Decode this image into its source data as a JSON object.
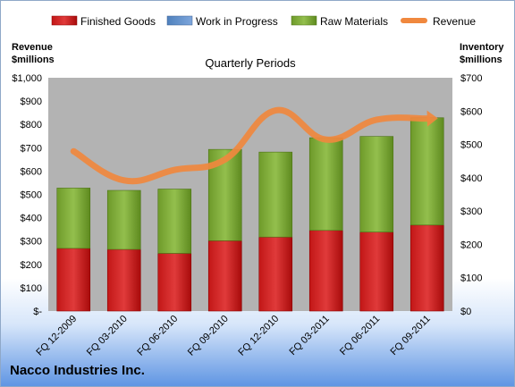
{
  "company": "Nacco Industries Inc.",
  "colors": {
    "finished_goods": "#c00000",
    "work_in_progress": "#4f81bd",
    "raw_materials": "#7aa032",
    "revenue": "#f0883e",
    "plot_bg": "#b3b3b3"
  },
  "chart_data": {
    "type": "bar",
    "title": "Quarterly Periods",
    "stacked": true,
    "categories": [
      "FQ 12-2009",
      "FQ 03-2010",
      "FQ 06-2010",
      "FQ 09-2010",
      "FQ 12-2010",
      "FQ 03-2011",
      "FQ 06-2011",
      "FQ 09-2011"
    ],
    "series": [
      {
        "name": "Finished Goods",
        "type": "bar",
        "axis": "right",
        "values": [
          188,
          185,
          173,
          211,
          222,
          242,
          237,
          258
        ]
      },
      {
        "name": "Work in Progress",
        "type": "bar",
        "axis": "right",
        "values": [
          0,
          0,
          0,
          0,
          0,
          0,
          0,
          0
        ]
      },
      {
        "name": "Raw Materials",
        "type": "bar",
        "axis": "right",
        "values": [
          181,
          177,
          193,
          274,
          255,
          278,
          287,
          322
        ]
      },
      {
        "name": "Revenue",
        "type": "line",
        "axis": "left",
        "values": [
          685,
          560,
          605,
          650,
          860,
          735,
          820,
          825
        ]
      }
    ],
    "ylabel_left": "Revenue $millions",
    "ylabel_right": "Inventory $millions",
    "ylim_left": [
      0,
      1000
    ],
    "ylim_right": [
      0,
      700
    ],
    "yticks_left": [
      "$-",
      "$100",
      "$200",
      "$300",
      "$400",
      "$500",
      "$600",
      "$700",
      "$800",
      "$900",
      "$1,000"
    ],
    "yticks_right": [
      "$0",
      "$100",
      "$200",
      "$300",
      "$400",
      "$500",
      "$600",
      "$700"
    ],
    "grid": false,
    "legend_position": "top"
  }
}
